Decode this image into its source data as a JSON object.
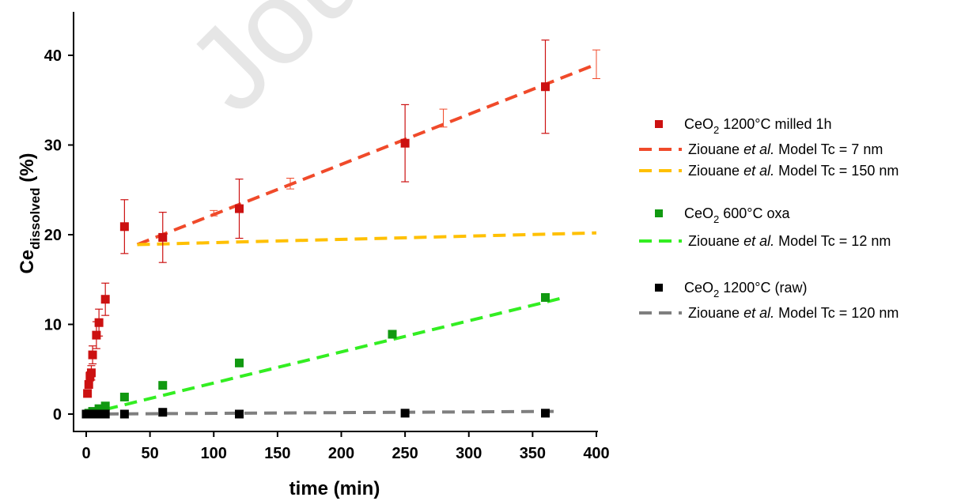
{
  "watermark": "Jou",
  "chart_data": {
    "type": "scatter",
    "xlabel": "time (min)",
    "ylabel_main": "Ce",
    "ylabel_sub": "dissolved",
    "ylabel_suffix": " (%)",
    "xlim": [
      0,
      400
    ],
    "ylim": [
      -1.5,
      45
    ],
    "xticks": [
      0,
      50,
      100,
      150,
      200,
      250,
      300,
      350,
      400
    ],
    "yticks": [
      0,
      10,
      20,
      30,
      40
    ],
    "grid": false,
    "legend_position": "right",
    "series": [
      {
        "kind": "points",
        "name_parts": [
          "CeO",
          "2",
          " 1200°C milled 1h"
        ],
        "color": "#cc1111",
        "x": [
          1,
          2,
          3,
          4,
          5,
          8,
          10,
          15,
          30,
          60,
          120,
          250,
          360
        ],
        "y": [
          2.3,
          3.3,
          4.2,
          4.6,
          6.6,
          8.8,
          10.2,
          12.8,
          20.9,
          19.7,
          22.9,
          30.2,
          36.5
        ],
        "yerr": [
          0,
          0,
          0.5,
          0.8,
          1.0,
          1.5,
          1.5,
          1.8,
          3.0,
          2.8,
          3.3,
          4.3,
          5.2
        ]
      },
      {
        "kind": "line",
        "name_parts": [
          "Ziouane ",
          "et al.",
          " Model Tc = 7 nm"
        ],
        "color": "#f04a2a",
        "x": [
          40,
          400
        ],
        "y": [
          18.9,
          39.0
        ],
        "error_x": [
          100,
          160,
          280,
          400
        ],
        "error_y": [
          22.4,
          25.7,
          33.0,
          39.0
        ],
        "error_yerr": [
          0.3,
          0.6,
          1.0,
          1.6
        ]
      },
      {
        "kind": "line",
        "name_parts": [
          "Ziouane ",
          "et al.",
          " Model Tc = 150 nm"
        ],
        "color": "#ffc000",
        "x": [
          40,
          400
        ],
        "y": [
          18.9,
          20.2
        ]
      },
      {
        "kind": "points",
        "name_parts": [
          "CeO",
          "2",
          " 600°C oxa"
        ],
        "color": "#119911",
        "x": [
          0,
          2,
          5,
          10,
          15,
          30,
          60,
          120,
          240,
          360
        ],
        "y": [
          0.0,
          0.1,
          0.3,
          0.6,
          0.9,
          1.9,
          3.2,
          5.7,
          8.9,
          13.0
        ]
      },
      {
        "kind": "line",
        "name_parts": [
          "Ziouane ",
          "et al.",
          " Model Tc = 12 nm"
        ],
        "color": "#33ee22",
        "x": [
          0,
          375
        ],
        "y": [
          0,
          13.0
        ]
      },
      {
        "kind": "points",
        "name_parts": [
          "CeO",
          "2",
          " 1200°C (raw)"
        ],
        "color": "#000000",
        "x": [
          0,
          2,
          5,
          8,
          10,
          12,
          15,
          30,
          60,
          120,
          250,
          360
        ],
        "y": [
          0,
          0,
          0,
          0,
          0,
          0,
          0,
          0,
          0.2,
          0,
          0.1,
          0.1
        ]
      },
      {
        "kind": "line",
        "name_parts": [
          "Ziouane ",
          "et al.",
          " Model Tc = 120 nm"
        ],
        "color": "#7f7f7f",
        "x": [
          0,
          370
        ],
        "y": [
          0,
          0.3
        ]
      }
    ]
  }
}
